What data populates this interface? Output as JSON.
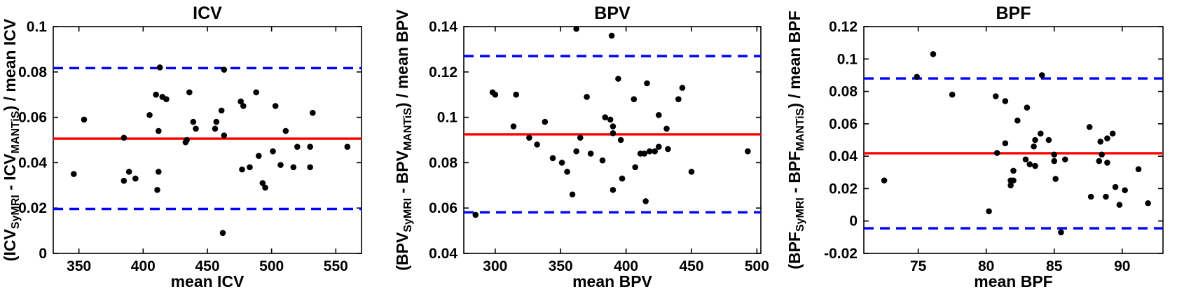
{
  "figure": {
    "background": "#ffffff",
    "description": "Three Bland-Altman agreement plots comparing SyMRI vs MANTiS measurements"
  },
  "colors": {
    "point": "#000000",
    "mean_line": "#ff0000",
    "loa_line": "#0000ff",
    "axis": "#000000",
    "text": "#000000"
  },
  "chart_data": [
    {
      "type": "scatter",
      "title": "ICV",
      "xlabel": "mean ICV",
      "ylabel_parts": [
        {
          "t": "(ICV",
          "sub": false
        },
        {
          "t": "SyMRI",
          "sub": true
        },
        {
          "t": " - ICV",
          "sub": false
        },
        {
          "t": "MANTiS",
          "sub": true
        },
        {
          "t": ") / mean ICV",
          "sub": false
        }
      ],
      "xlim": [
        330,
        570
      ],
      "ylim": [
        0,
        0.1
      ],
      "xtick_values": [
        350,
        400,
        450,
        500,
        550
      ],
      "xtick_labels": [
        "350",
        "400",
        "450",
        "500",
        "550"
      ],
      "ytick_values": [
        0,
        0.02,
        0.04,
        0.06,
        0.08,
        0.1
      ],
      "ytick_labels": [
        "0",
        "0.02",
        "0.04",
        "0.06",
        "0.08",
        "0.1"
      ],
      "mean_line": 0.0506,
      "upper_loa": 0.0817,
      "lower_loa": 0.0196,
      "grid": false,
      "points": [
        [
          346,
          0.035
        ],
        [
          354,
          0.059
        ],
        [
          385,
          0.051
        ],
        [
          385,
          0.032
        ],
        [
          389,
          0.036
        ],
        [
          394,
          0.033
        ],
        [
          405,
          0.061
        ],
        [
          410,
          0.07
        ],
        [
          411,
          0.028
        ],
        [
          412,
          0.036
        ],
        [
          412,
          0.054
        ],
        [
          413,
          0.082
        ],
        [
          415,
          0.069
        ],
        [
          418,
          0.068
        ],
        [
          433,
          0.049
        ],
        [
          434,
          0.05
        ],
        [
          436,
          0.071
        ],
        [
          439,
          0.058
        ],
        [
          441,
          0.055
        ],
        [
          456,
          0.055
        ],
        [
          457,
          0.058
        ],
        [
          461,
          0.063
        ],
        [
          462,
          0.009
        ],
        [
          463,
          0.052
        ],
        [
          463,
          0.081
        ],
        [
          476,
          0.067
        ],
        [
          477,
          0.037
        ],
        [
          478,
          0.065
        ],
        [
          483,
          0.038
        ],
        [
          488,
          0.071
        ],
        [
          490,
          0.043
        ],
        [
          493,
          0.031
        ],
        [
          495,
          0.029
        ],
        [
          501,
          0.045
        ],
        [
          503,
          0.065
        ],
        [
          507,
          0.039
        ],
        [
          511,
          0.054
        ],
        [
          517,
          0.038
        ],
        [
          520,
          0.047
        ],
        [
          530,
          0.047
        ],
        [
          530,
          0.038
        ],
        [
          532,
          0.062
        ],
        [
          559,
          0.047
        ]
      ]
    },
    {
      "type": "scatter",
      "title": "BPV",
      "xlabel": "mean BPV",
      "ylabel_parts": [
        {
          "t": "(BPV",
          "sub": false
        },
        {
          "t": "SyMRI",
          "sub": true
        },
        {
          "t": " - BPV",
          "sub": false
        },
        {
          "t": "MANTiS",
          "sub": true
        },
        {
          "t": ") / mean BPV",
          "sub": false
        }
      ],
      "xlim": [
        276,
        503
      ],
      "ylim": [
        0.04,
        0.14
      ],
      "xtick_values": [
        300,
        350,
        400,
        450,
        500
      ],
      "xtick_labels": [
        "300",
        "350",
        "400",
        "450",
        "500"
      ],
      "ytick_values": [
        0.04,
        0.06,
        0.08,
        0.1,
        0.12,
        0.14
      ],
      "ytick_labels": [
        "0.04",
        "0.06",
        "0.08",
        "0.1",
        "0.12",
        "0.14"
      ],
      "mean_line": 0.0925,
      "upper_loa": 0.127,
      "lower_loa": 0.0581,
      "grid": false,
      "points": [
        [
          285,
          0.057
        ],
        [
          298,
          0.111
        ],
        [
          300,
          0.11
        ],
        [
          314,
          0.096
        ],
        [
          316,
          0.11
        ],
        [
          326,
          0.091
        ],
        [
          332,
          0.088
        ],
        [
          338,
          0.098
        ],
        [
          344,
          0.082
        ],
        [
          351,
          0.08
        ],
        [
          355,
          0.076
        ],
        [
          359,
          0.066
        ],
        [
          362,
          0.085
        ],
        [
          362,
          0.139
        ],
        [
          365,
          0.091
        ],
        [
          370,
          0.109
        ],
        [
          373,
          0.084
        ],
        [
          382,
          0.081
        ],
        [
          384,
          0.1
        ],
        [
          388,
          0.099
        ],
        [
          389,
          0.136
        ],
        [
          390,
          0.068
        ],
        [
          390,
          0.096
        ],
        [
          390,
          0.093
        ],
        [
          394,
          0.117
        ],
        [
          396,
          0.09
        ],
        [
          397,
          0.073
        ],
        [
          406,
          0.108
        ],
        [
          407,
          0.078
        ],
        [
          411,
          0.084
        ],
        [
          414,
          0.084
        ],
        [
          415,
          0.063
        ],
        [
          416,
          0.115
        ],
        [
          418,
          0.085
        ],
        [
          422,
          0.085
        ],
        [
          425,
          0.101
        ],
        [
          425,
          0.087
        ],
        [
          431,
          0.095
        ],
        [
          432,
          0.086
        ],
        [
          440,
          0.108
        ],
        [
          443,
          0.113
        ],
        [
          450,
          0.076
        ],
        [
          493,
          0.085
        ]
      ]
    },
    {
      "type": "scatter",
      "title": "BPF",
      "xlabel": "mean BPF",
      "ylabel_parts": [
        {
          "t": "(BPF",
          "sub": false
        },
        {
          "t": "SyMRI",
          "sub": true
        },
        {
          "t": " - BPF",
          "sub": false
        },
        {
          "t": "MANTiS",
          "sub": true
        },
        {
          "t": ") / mean BPF",
          "sub": false
        }
      ],
      "xlim": [
        71,
        93
      ],
      "ylim": [
        -0.02,
        0.12
      ],
      "xtick_values": [
        75,
        80,
        85,
        90
      ],
      "xtick_labels": [
        "75",
        "80",
        "85",
        "90"
      ],
      "ytick_values": [
        -0.02,
        0,
        0.02,
        0.04,
        0.06,
        0.08,
        0.1,
        0.12
      ],
      "ytick_labels": [
        "-0.02",
        "0",
        "0.02",
        "0.04",
        "0.06",
        "0.08",
        "0.1",
        "0.12"
      ],
      "mean_line": 0.0418,
      "upper_loa": 0.088,
      "lower_loa": -0.0045,
      "grid": false,
      "points": [
        [
          72.5,
          0.025
        ],
        [
          74.9,
          0.089
        ],
        [
          76.1,
          0.103
        ],
        [
          77.5,
          0.078
        ],
        [
          80.2,
          0.006
        ],
        [
          80.7,
          0.077
        ],
        [
          80.8,
          0.042
        ],
        [
          81.4,
          0.048
        ],
        [
          81.4,
          0.074
        ],
        [
          81.8,
          0.022
        ],
        [
          81.8,
          0.025
        ],
        [
          82.0,
          0.025
        ],
        [
          82.0,
          0.031
        ],
        [
          82.3,
          0.062
        ],
        [
          82.9,
          0.038
        ],
        [
          83.0,
          0.07
        ],
        [
          83.2,
          0.035
        ],
        [
          83.5,
          0.046
        ],
        [
          83.6,
          0.034
        ],
        [
          83.6,
          0.05
        ],
        [
          84.0,
          0.054
        ],
        [
          84.1,
          0.09
        ],
        [
          84.6,
          0.05
        ],
        [
          85.0,
          0.037
        ],
        [
          85.0,
          0.041
        ],
        [
          85.1,
          0.026
        ],
        [
          85.5,
          -0.007
        ],
        [
          85.8,
          0.038
        ],
        [
          87.6,
          0.058
        ],
        [
          87.7,
          0.015
        ],
        [
          88.3,
          0.037
        ],
        [
          88.4,
          0.049
        ],
        [
          88.5,
          0.041
        ],
        [
          88.8,
          0.015
        ],
        [
          88.9,
          0.036
        ],
        [
          88.9,
          0.051
        ],
        [
          89.3,
          0.054
        ],
        [
          89.5,
          0.021
        ],
        [
          89.8,
          0.01
        ],
        [
          90.2,
          0.019
        ],
        [
          91.2,
          0.032
        ],
        [
          91.9,
          0.011
        ]
      ]
    }
  ]
}
